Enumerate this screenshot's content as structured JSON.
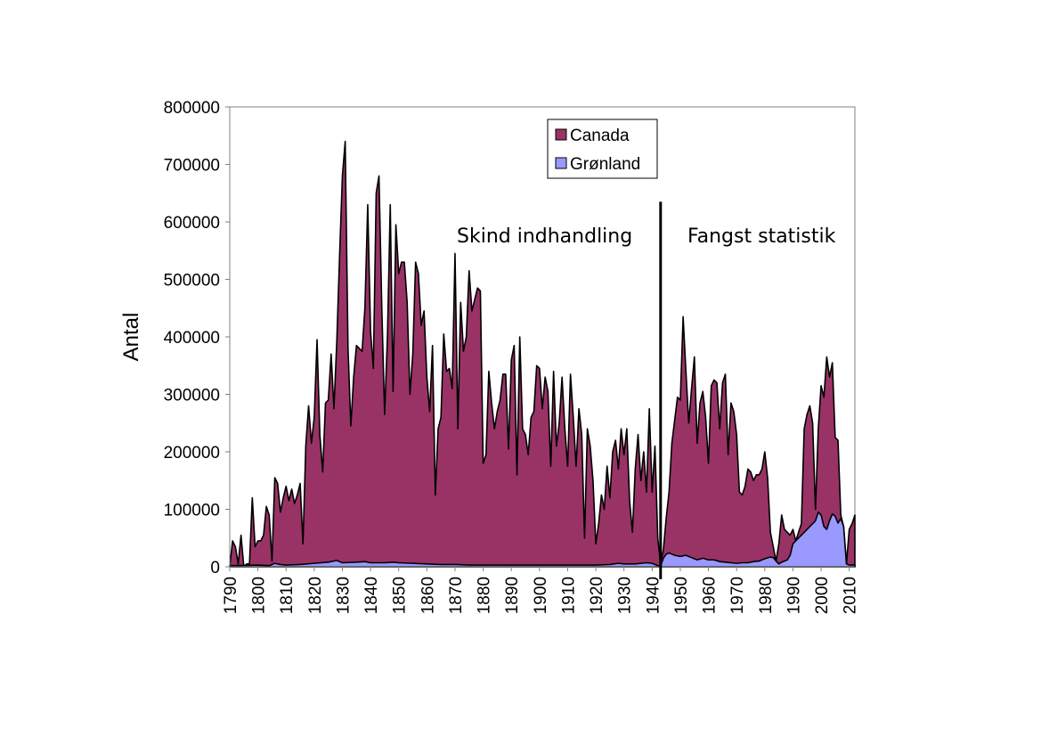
{
  "chart_data": {
    "type": "area",
    "title": "",
    "xlabel": "",
    "ylabel": "Antal",
    "xlim": [
      1790,
      2012
    ],
    "ylim": [
      0,
      800000
    ],
    "y_ticks": [
      0,
      100000,
      200000,
      300000,
      400000,
      500000,
      600000,
      700000,
      800000
    ],
    "x_ticks": [
      1790,
      1800,
      1810,
      1820,
      1830,
      1840,
      1850,
      1860,
      1870,
      1880,
      1890,
      1900,
      1910,
      1920,
      1930,
      1940,
      1950,
      1960,
      1970,
      1980,
      1990,
      2000,
      2010
    ],
    "grid": false,
    "legend_position": "top-center",
    "annotations": [
      {
        "text": "Skind indhandling",
        "x": 1868,
        "y": 580000
      },
      {
        "text": "Fangst statistik",
        "x": 1945,
        "y": 580000
      }
    ],
    "divider": {
      "x": 1943,
      "y_top": 635000
    },
    "colors": {
      "canada": "#993366",
      "gronland": "#9999ff",
      "outline": "#000000"
    },
    "series": [
      {
        "name": "Canada",
        "points": [
          [
            1790,
            0
          ],
          [
            1791,
            45000
          ],
          [
            1792,
            35000
          ],
          [
            1793,
            5000
          ],
          [
            1794,
            55000
          ],
          [
            1795,
            0
          ],
          [
            1796,
            5000
          ],
          [
            1797,
            5000
          ],
          [
            1798,
            120000
          ],
          [
            1799,
            35000
          ],
          [
            1800,
            45000
          ],
          [
            1801,
            45000
          ],
          [
            1802,
            55000
          ],
          [
            1803,
            105000
          ],
          [
            1804,
            90000
          ],
          [
            1805,
            10000
          ],
          [
            1806,
            155000
          ],
          [
            1807,
            145000
          ],
          [
            1808,
            95000
          ],
          [
            1809,
            120000
          ],
          [
            1810,
            140000
          ],
          [
            1811,
            115000
          ],
          [
            1812,
            135000
          ],
          [
            1813,
            110000
          ],
          [
            1814,
            125000
          ],
          [
            1815,
            145000
          ],
          [
            1816,
            40000
          ],
          [
            1817,
            210000
          ],
          [
            1818,
            280000
          ],
          [
            1819,
            215000
          ],
          [
            1820,
            260000
          ],
          [
            1821,
            395000
          ],
          [
            1822,
            230000
          ],
          [
            1823,
            165000
          ],
          [
            1824,
            285000
          ],
          [
            1825,
            290000
          ],
          [
            1826,
            370000
          ],
          [
            1827,
            275000
          ],
          [
            1828,
            390000
          ],
          [
            1829,
            540000
          ],
          [
            1830,
            680000
          ],
          [
            1831,
            740000
          ],
          [
            1832,
            380000
          ],
          [
            1833,
            245000
          ],
          [
            1834,
            330000
          ],
          [
            1835,
            385000
          ],
          [
            1836,
            380000
          ],
          [
            1837,
            375000
          ],
          [
            1838,
            450000
          ],
          [
            1839,
            630000
          ],
          [
            1840,
            410000
          ],
          [
            1841,
            345000
          ],
          [
            1842,
            650000
          ],
          [
            1843,
            680000
          ],
          [
            1844,
            450000
          ],
          [
            1845,
            265000
          ],
          [
            1846,
            400000
          ],
          [
            1847,
            630000
          ],
          [
            1848,
            305000
          ],
          [
            1849,
            595000
          ],
          [
            1850,
            510000
          ],
          [
            1851,
            530000
          ],
          [
            1852,
            530000
          ],
          [
            1853,
            460000
          ],
          [
            1854,
            300000
          ],
          [
            1855,
            370000
          ],
          [
            1856,
            530000
          ],
          [
            1857,
            510000
          ],
          [
            1858,
            420000
          ],
          [
            1859,
            445000
          ],
          [
            1860,
            330000
          ],
          [
            1861,
            270000
          ],
          [
            1862,
            385000
          ],
          [
            1863,
            125000
          ],
          [
            1864,
            240000
          ],
          [
            1865,
            260000
          ],
          [
            1866,
            405000
          ],
          [
            1867,
            340000
          ],
          [
            1868,
            345000
          ],
          [
            1869,
            310000
          ],
          [
            1870,
            545000
          ],
          [
            1871,
            240000
          ],
          [
            1872,
            460000
          ],
          [
            1873,
            375000
          ],
          [
            1874,
            400000
          ],
          [
            1875,
            515000
          ],
          [
            1876,
            445000
          ],
          [
            1877,
            465000
          ],
          [
            1878,
            485000
          ],
          [
            1879,
            480000
          ],
          [
            1880,
            180000
          ],
          [
            1881,
            195000
          ],
          [
            1882,
            340000
          ],
          [
            1883,
            285000
          ],
          [
            1884,
            240000
          ],
          [
            1885,
            270000
          ],
          [
            1886,
            290000
          ],
          [
            1887,
            335000
          ],
          [
            1888,
            335000
          ],
          [
            1889,
            205000
          ],
          [
            1890,
            360000
          ],
          [
            1891,
            385000
          ],
          [
            1892,
            160000
          ],
          [
            1893,
            400000
          ],
          [
            1894,
            240000
          ],
          [
            1895,
            230000
          ],
          [
            1896,
            195000
          ],
          [
            1897,
            260000
          ],
          [
            1898,
            270000
          ],
          [
            1899,
            350000
          ],
          [
            1900,
            345000
          ],
          [
            1901,
            275000
          ],
          [
            1902,
            330000
          ],
          [
            1903,
            305000
          ],
          [
            1904,
            175000
          ],
          [
            1905,
            340000
          ],
          [
            1906,
            210000
          ],
          [
            1907,
            250000
          ],
          [
            1908,
            330000
          ],
          [
            1909,
            240000
          ],
          [
            1910,
            175000
          ],
          [
            1911,
            335000
          ],
          [
            1912,
            260000
          ],
          [
            1913,
            175000
          ],
          [
            1914,
            275000
          ],
          [
            1915,
            230000
          ],
          [
            1916,
            50000
          ],
          [
            1917,
            240000
          ],
          [
            1918,
            210000
          ],
          [
            1919,
            150000
          ],
          [
            1920,
            40000
          ],
          [
            1921,
            75000
          ],
          [
            1922,
            125000
          ],
          [
            1923,
            100000
          ],
          [
            1924,
            175000
          ],
          [
            1925,
            120000
          ],
          [
            1926,
            200000
          ],
          [
            1927,
            220000
          ],
          [
            1928,
            170000
          ],
          [
            1929,
            240000
          ],
          [
            1930,
            195000
          ],
          [
            1931,
            240000
          ],
          [
            1932,
            115000
          ],
          [
            1933,
            60000
          ],
          [
            1934,
            170000
          ],
          [
            1935,
            230000
          ],
          [
            1936,
            150000
          ],
          [
            1937,
            200000
          ],
          [
            1938,
            130000
          ],
          [
            1939,
            275000
          ],
          [
            1940,
            130000
          ],
          [
            1941,
            210000
          ],
          [
            1942,
            50000
          ],
          [
            1943,
            5000
          ],
          [
            1944,
            30000
          ],
          [
            1945,
            85000
          ],
          [
            1946,
            130000
          ],
          [
            1947,
            215000
          ],
          [
            1948,
            255000
          ],
          [
            1949,
            295000
          ],
          [
            1950,
            290000
          ],
          [
            1951,
            435000
          ],
          [
            1952,
            340000
          ],
          [
            1953,
            250000
          ],
          [
            1954,
            310000
          ],
          [
            1955,
            365000
          ],
          [
            1956,
            215000
          ],
          [
            1957,
            285000
          ],
          [
            1958,
            305000
          ],
          [
            1959,
            260000
          ],
          [
            1960,
            180000
          ],
          [
            1961,
            315000
          ],
          [
            1962,
            325000
          ],
          [
            1963,
            320000
          ],
          [
            1964,
            240000
          ],
          [
            1965,
            320000
          ],
          [
            1966,
            335000
          ],
          [
            1967,
            195000
          ],
          [
            1968,
            285000
          ],
          [
            1969,
            270000
          ],
          [
            1970,
            230000
          ],
          [
            1971,
            130000
          ],
          [
            1972,
            125000
          ],
          [
            1973,
            140000
          ],
          [
            1974,
            170000
          ],
          [
            1975,
            165000
          ],
          [
            1976,
            150000
          ],
          [
            1977,
            160000
          ],
          [
            1978,
            160000
          ],
          [
            1979,
            170000
          ],
          [
            1980,
            200000
          ],
          [
            1981,
            155000
          ],
          [
            1982,
            60000
          ],
          [
            1983,
            35000
          ],
          [
            1984,
            10000
          ],
          [
            1985,
            40000
          ],
          [
            1986,
            90000
          ],
          [
            1987,
            65000
          ],
          [
            1988,
            60000
          ],
          [
            1989,
            55000
          ],
          [
            1990,
            65000
          ],
          [
            1991,
            45000
          ],
          [
            1992,
            60000
          ],
          [
            1993,
            75000
          ],
          [
            1994,
            240000
          ],
          [
            1995,
            265000
          ],
          [
            1996,
            280000
          ],
          [
            1997,
            250000
          ],
          [
            1998,
            100000
          ],
          [
            1999,
            240000
          ],
          [
            2000,
            315000
          ],
          [
            2001,
            295000
          ],
          [
            2002,
            365000
          ],
          [
            2003,
            330000
          ],
          [
            2004,
            355000
          ],
          [
            2005,
            225000
          ],
          [
            2006,
            220000
          ],
          [
            2007,
            90000
          ],
          [
            2008,
            70000
          ],
          [
            2009,
            5000
          ],
          [
            2010,
            65000
          ],
          [
            2011,
            75000
          ],
          [
            2012,
            90000
          ]
        ]
      },
      {
        "name": "Grønland",
        "points": [
          [
            1790,
            2000
          ],
          [
            1800,
            3000
          ],
          [
            1804,
            2000
          ],
          [
            1806,
            6000
          ],
          [
            1808,
            4000
          ],
          [
            1810,
            3000
          ],
          [
            1815,
            4000
          ],
          [
            1820,
            6000
          ],
          [
            1825,
            8000
          ],
          [
            1828,
            11000
          ],
          [
            1830,
            7000
          ],
          [
            1835,
            8000
          ],
          [
            1838,
            9000
          ],
          [
            1840,
            7000
          ],
          [
            1845,
            7000
          ],
          [
            1848,
            8000
          ],
          [
            1850,
            7000
          ],
          [
            1855,
            6000
          ],
          [
            1860,
            5000
          ],
          [
            1865,
            4000
          ],
          [
            1870,
            4000
          ],
          [
            1875,
            3000
          ],
          [
            1880,
            3000
          ],
          [
            1890,
            3000
          ],
          [
            1900,
            3000
          ],
          [
            1910,
            3000
          ],
          [
            1915,
            3000
          ],
          [
            1920,
            3000
          ],
          [
            1925,
            4000
          ],
          [
            1928,
            6000
          ],
          [
            1930,
            5000
          ],
          [
            1934,
            5000
          ],
          [
            1938,
            7000
          ],
          [
            1940,
            6000
          ],
          [
            1942,
            2000
          ],
          [
            1943,
            1000
          ],
          [
            1944,
            15000
          ],
          [
            1945,
            22000
          ],
          [
            1946,
            24000
          ],
          [
            1947,
            22000
          ],
          [
            1948,
            20000
          ],
          [
            1950,
            18000
          ],
          [
            1952,
            20000
          ],
          [
            1954,
            16000
          ],
          [
            1956,
            12000
          ],
          [
            1958,
            15000
          ],
          [
            1960,
            12000
          ],
          [
            1962,
            12000
          ],
          [
            1964,
            9000
          ],
          [
            1966,
            8000
          ],
          [
            1968,
            7000
          ],
          [
            1970,
            6000
          ],
          [
            1972,
            7000
          ],
          [
            1974,
            7000
          ],
          [
            1976,
            9000
          ],
          [
            1978,
            10000
          ],
          [
            1980,
            14000
          ],
          [
            1982,
            17000
          ],
          [
            1983,
            16000
          ],
          [
            1984,
            10000
          ],
          [
            1985,
            5000
          ],
          [
            1986,
            8000
          ],
          [
            1988,
            12000
          ],
          [
            1989,
            20000
          ],
          [
            1990,
            40000
          ],
          [
            1992,
            50000
          ],
          [
            1994,
            60000
          ],
          [
            1996,
            70000
          ],
          [
            1998,
            80000
          ],
          [
            1999,
            95000
          ],
          [
            2000,
            90000
          ],
          [
            2001,
            70000
          ],
          [
            2002,
            65000
          ],
          [
            2003,
            80000
          ],
          [
            2004,
            92000
          ],
          [
            2005,
            88000
          ],
          [
            2006,
            76000
          ],
          [
            2007,
            84000
          ],
          [
            2008,
            70000
          ],
          [
            2009,
            5000
          ],
          [
            2010,
            3000
          ],
          [
            2012,
            3000
          ]
        ]
      }
    ]
  }
}
